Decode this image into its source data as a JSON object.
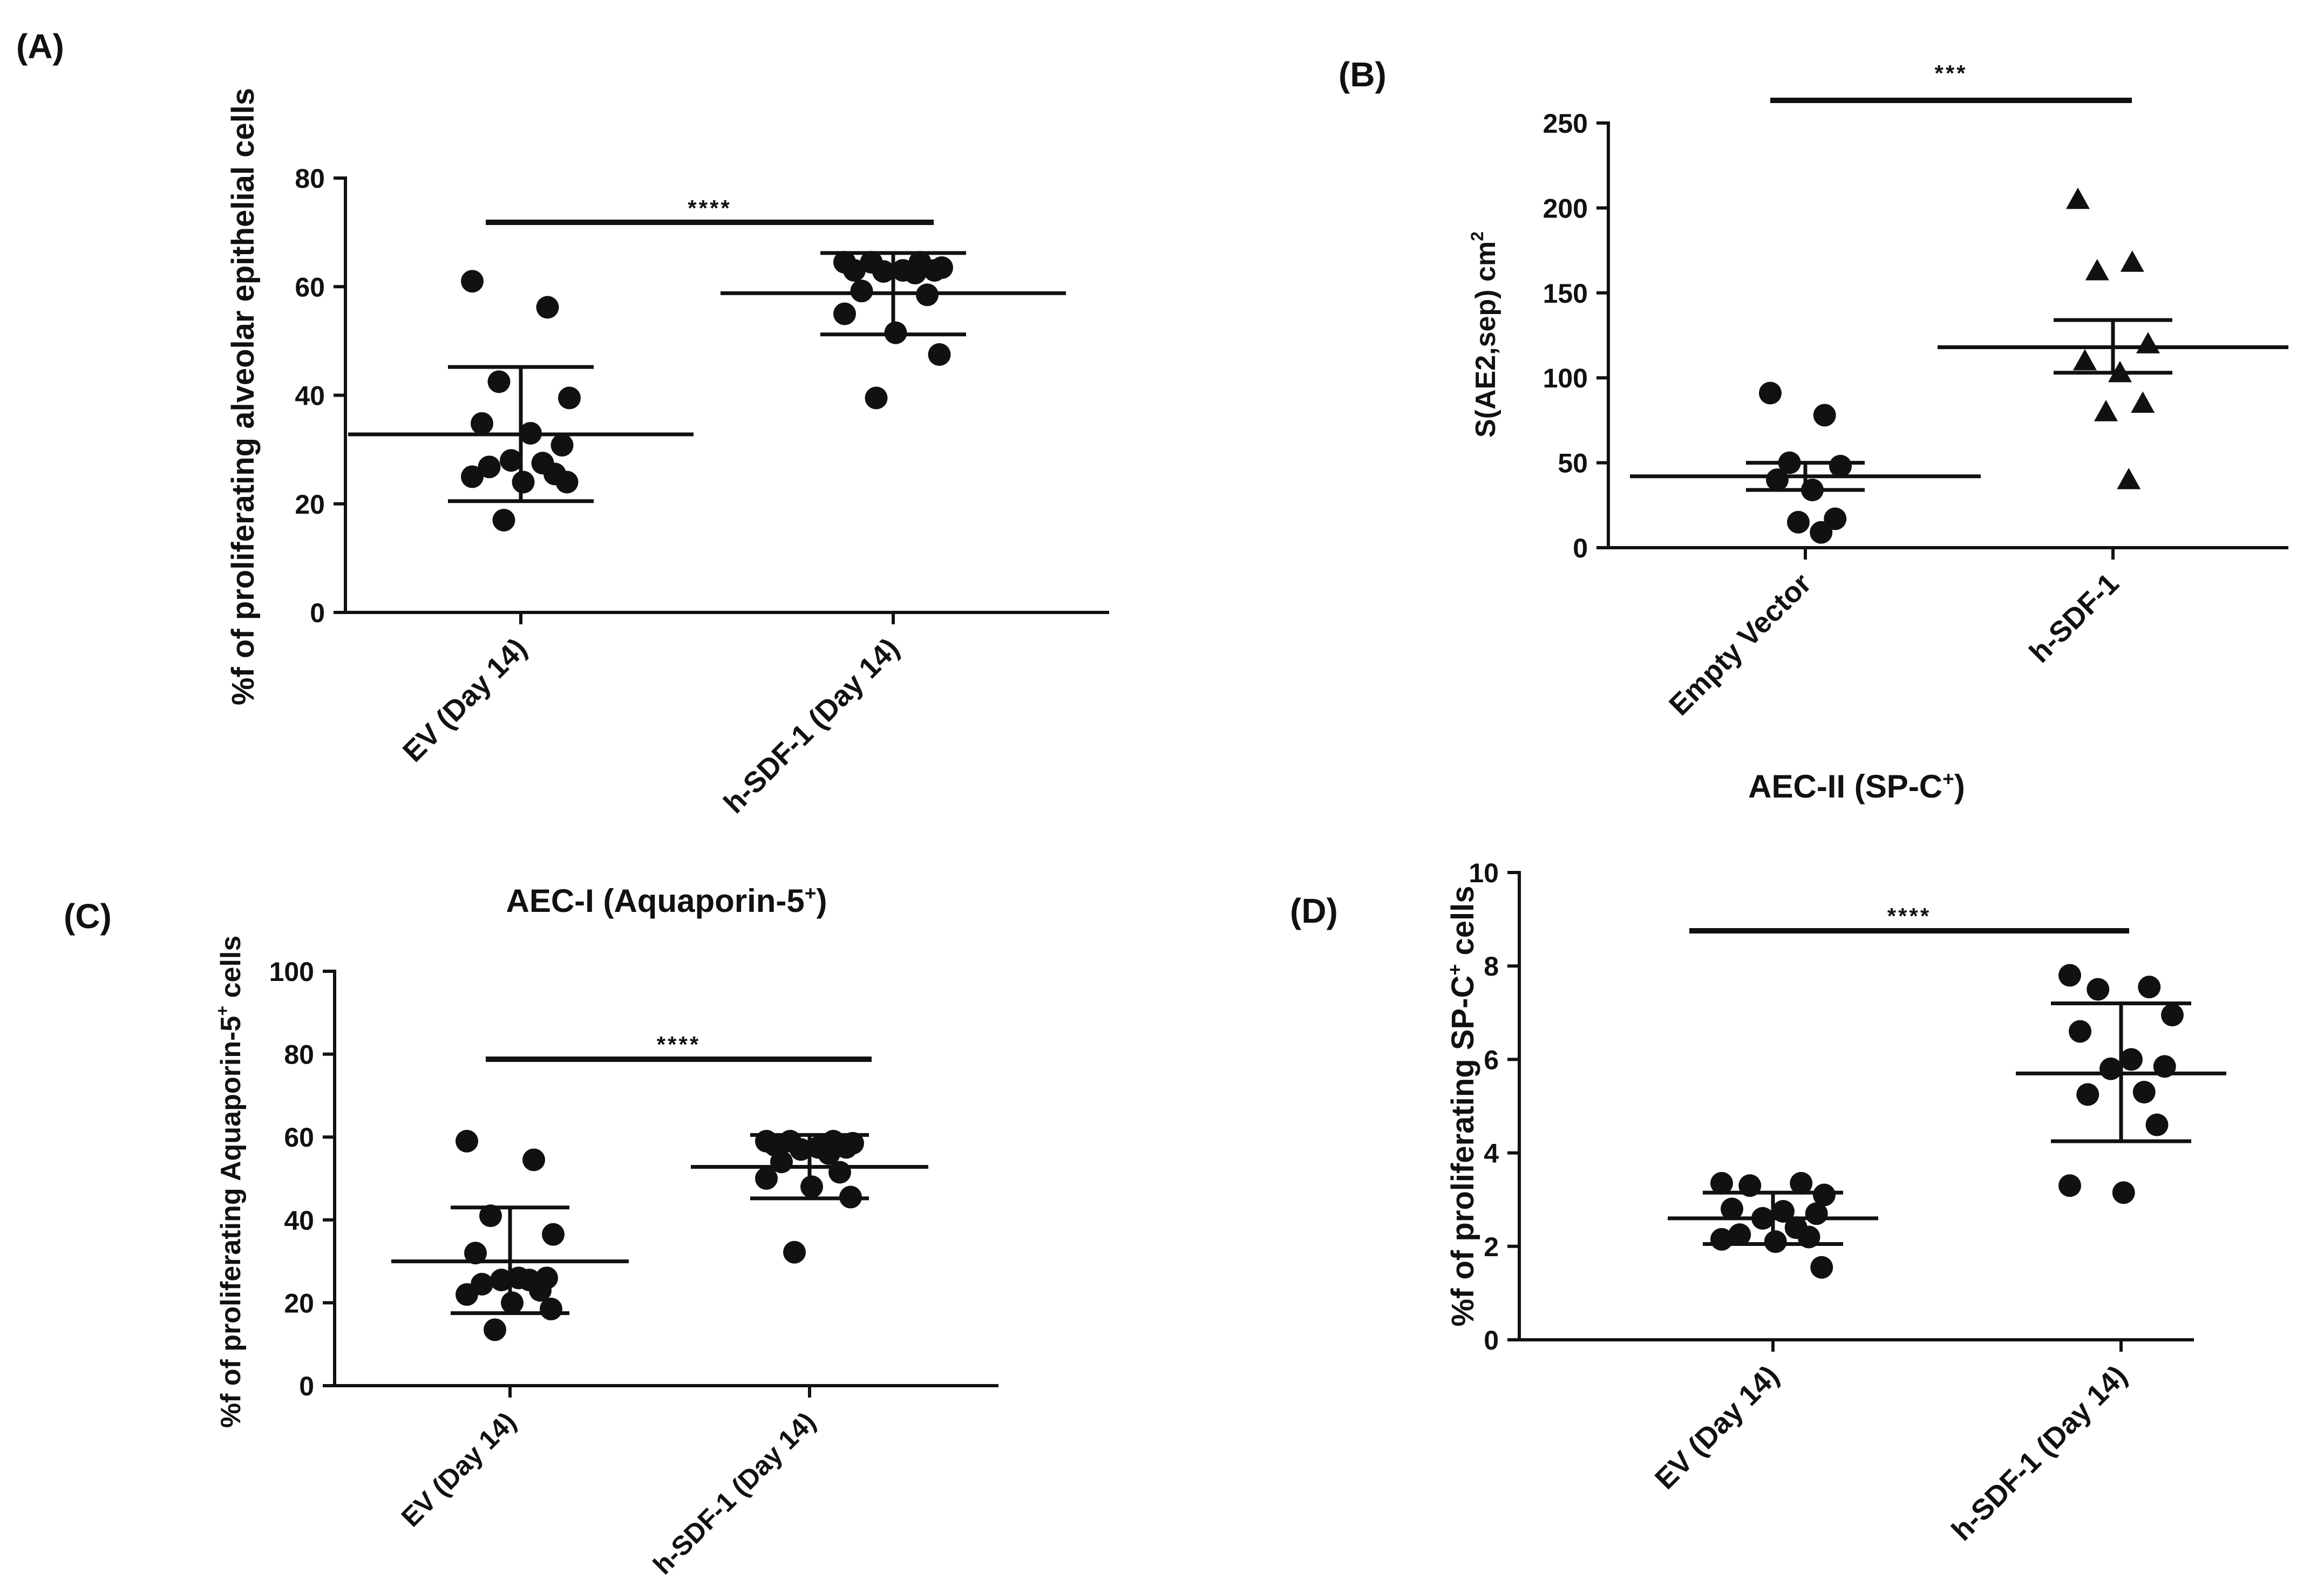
{
  "chart_data": [
    {
      "id": "A",
      "panel_label": "(A)",
      "type": "scatter",
      "title": "",
      "ylabel_lines": [
        {
          "text": "%f of proliferating alveolar epithelial cells",
          "sup": ""
        }
      ],
      "ylim": [
        0,
        80
      ],
      "yticks": [
        0,
        20,
        40,
        60,
        80
      ],
      "tick_labels": [
        "0",
        "20",
        "40",
        "60",
        "80"
      ],
      "categories": [
        "EV (Day 14)",
        "h-SDF-1 (Day 14)"
      ],
      "significance": "****",
      "series": [
        {
          "name": "EV (Day 14)",
          "marker": "circle",
          "mean": 32.8,
          "err_upper": 45.2,
          "err_lower": 20.5,
          "values": [
            61,
            56.2,
            42.5,
            39.5,
            34.8,
            33,
            30.8,
            28,
            27.5,
            26.8,
            25.5,
            25,
            24,
            24,
            17
          ]
        },
        {
          "name": "h-SDF-1 (Day 14)",
          "marker": "circle",
          "mean": 58.8,
          "err_upper": 66.2,
          "err_lower": 51.2,
          "values": [
            64.5,
            64.5,
            64.5,
            63.5,
            63,
            63,
            63,
            62.8,
            62.5,
            59.2,
            58.5,
            55,
            51.5,
            47.5,
            39.5
          ]
        }
      ]
    },
    {
      "id": "B",
      "panel_label": "(B)",
      "type": "scatter",
      "title": "",
      "ylabel_lines": [
        {
          "text": "S(AE2,sep) cm",
          "sup": "2"
        }
      ],
      "ylim": [
        0,
        250
      ],
      "yticks": [
        0,
        50,
        100,
        150,
        200,
        250
      ],
      "tick_labels": [
        "0",
        "50",
        "100",
        "150",
        "200",
        "250"
      ],
      "categories": [
        "Empty Vector",
        "h-SDF-1"
      ],
      "significance": "***",
      "series": [
        {
          "name": "Empty Vector",
          "marker": "circle",
          "mean": 42,
          "err_upper": 50,
          "err_lower": 34,
          "values": [
            91,
            78,
            50,
            48,
            40,
            34,
            17,
            15,
            9
          ]
        },
        {
          "name": "h-SDF-1",
          "marker": "triangle",
          "mean": 118,
          "err_upper": 134,
          "err_lower": 103,
          "values": [
            205,
            168,
            163,
            120,
            110,
            103,
            85,
            80,
            40
          ]
        }
      ]
    },
    {
      "id": "C",
      "panel_label": "(C)",
      "type": "scatter",
      "title": "AEC-I (Aquaporin-5",
      "title_sup": "+",
      "title_end": ")",
      "ylabel_lines": [
        {
          "text": "%f of proliferating Aquaporin-5",
          "sup": "+",
          "end": " cells"
        }
      ],
      "ylim": [
        0,
        100
      ],
      "yticks": [
        0,
        20,
        40,
        60,
        80,
        100
      ],
      "tick_labels": [
        "0",
        "20",
        "40",
        "60",
        "80",
        "100"
      ],
      "categories": [
        "EV (Day 14)",
        "h-SDF-1 (Day 14)"
      ],
      "significance": "****",
      "series": [
        {
          "name": "EV (Day 14)",
          "marker": "circle",
          "mean": 30,
          "err_upper": 43,
          "err_lower": 17.5,
          "values": [
            59,
            54.5,
            41,
            36.5,
            32,
            26,
            26,
            25.5,
            25.5,
            24.5,
            23,
            22,
            20,
            18.5,
            13.5
          ]
        },
        {
          "name": "h-SDF-1 (Day 14)",
          "marker": "circle",
          "mean": 52.8,
          "err_upper": 60.5,
          "err_lower": 45.2,
          "values": [
            59,
            59,
            59,
            58.5,
            58,
            57.5,
            57.5,
            57,
            56,
            54,
            51.5,
            50,
            48,
            45.5,
            32.2
          ]
        }
      ]
    },
    {
      "id": "D",
      "panel_label": "(D)",
      "type": "scatter",
      "title": "AEC-II (SP-C",
      "title_sup": "+",
      "title_end": ")",
      "ylabel_lines": [
        {
          "text": "%f of proliferating SP-C",
          "sup": "+",
          "end": " cells"
        }
      ],
      "ylim": [
        0,
        10
      ],
      "yticks": [
        0,
        2,
        4,
        6,
        8,
        10
      ],
      "tick_labels": [
        "0",
        "2",
        "4",
        "6",
        "8",
        "10"
      ],
      "categories": [
        "EV (Day 14)",
        "h-SDF-1 (Day 14)"
      ],
      "significance": "****",
      "series": [
        {
          "name": "EV (Day 14)",
          "marker": "circle",
          "mean": 2.6,
          "err_upper": 3.15,
          "err_lower": 2.05,
          "values": [
            3.35,
            3.35,
            3.3,
            3.1,
            2.8,
            2.75,
            2.7,
            2.6,
            2.4,
            2.25,
            2.2,
            2.15,
            2.1,
            1.55
          ]
        },
        {
          "name": "h-SDF-1 (Day 14)",
          "marker": "circle",
          "mean": 5.7,
          "err_upper": 7.2,
          "err_lower": 4.25,
          "values": [
            7.8,
            7.55,
            7.5,
            6.95,
            6.6,
            6.0,
            5.85,
            5.8,
            5.3,
            5.25,
            4.6,
            3.3,
            3.15
          ]
        }
      ]
    }
  ]
}
